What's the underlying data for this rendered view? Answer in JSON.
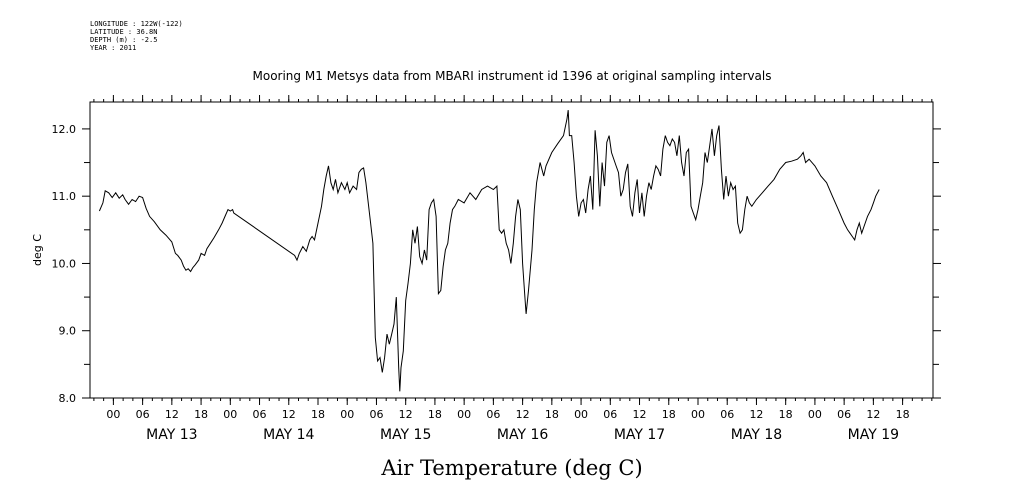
{
  "header": {
    "longitude": "LONGITUDE : 122W(-122)",
    "latitude": "LATITUDE : 36.8N",
    "depth": "DEPTH (m) : -2.5",
    "year": "YEAR : 2011"
  },
  "chart_data": {
    "type": "line",
    "title": "Mooring M1 Metsys data from MBARI instrument id 1396 at original sampling intervals",
    "xlabel": "Air Temperature (deg C)",
    "ylabel": "deg C",
    "ylim": [
      8.0,
      12.4
    ],
    "xlim": [
      -0.2,
      7.01
    ],
    "x_units": "days since May 13 00:00",
    "grid": false,
    "y_ticks": [
      "8.0",
      "9.0",
      "10.0",
      "11.0",
      "12.0"
    ],
    "hour_tick_labels": [
      "00",
      "06",
      "12",
      "18"
    ],
    "day_labels": [
      "MAY 13",
      "MAY 14",
      "MAY 15",
      "MAY 16",
      "MAY 17",
      "MAY 18",
      "MAY 19"
    ],
    "series": [
      {
        "points": [
          [
            -0.12,
            10.78
          ],
          [
            -0.09,
            10.9
          ],
          [
            -0.07,
            11.08
          ],
          [
            -0.04,
            11.05
          ],
          [
            -0.01,
            10.98
          ],
          [
            0.02,
            11.05
          ],
          [
            0.05,
            10.97
          ],
          [
            0.08,
            11.02
          ],
          [
            0.1,
            10.95
          ],
          [
            0.13,
            10.88
          ],
          [
            0.16,
            10.95
          ],
          [
            0.19,
            10.92
          ],
          [
            0.22,
            11.0
          ],
          [
            0.25,
            10.98
          ],
          [
            0.28,
            10.82
          ],
          [
            0.31,
            10.7
          ],
          [
            0.35,
            10.62
          ],
          [
            0.4,
            10.5
          ],
          [
            0.45,
            10.42
          ],
          [
            0.5,
            10.32
          ],
          [
            0.53,
            10.15
          ],
          [
            0.55,
            10.12
          ],
          [
            0.58,
            10.05
          ],
          [
            0.6,
            9.96
          ],
          [
            0.62,
            9.9
          ],
          [
            0.64,
            9.92
          ],
          [
            0.66,
            9.88
          ],
          [
            0.68,
            9.94
          ],
          [
            0.7,
            9.98
          ],
          [
            0.73,
            10.05
          ],
          [
            0.75,
            10.15
          ],
          [
            0.78,
            10.12
          ],
          [
            0.8,
            10.22
          ],
          [
            0.83,
            10.3
          ],
          [
            0.86,
            10.38
          ],
          [
            0.9,
            10.5
          ],
          [
            0.93,
            10.6
          ],
          [
            0.96,
            10.72
          ],
          [
            0.98,
            10.8
          ],
          [
            1.0,
            10.78
          ],
          [
            1.02,
            10.8
          ],
          [
            1.03,
            10.75
          ],
          [
            1.55,
            10.12
          ],
          [
            1.57,
            10.05
          ],
          [
            1.59,
            10.15
          ],
          [
            1.62,
            10.25
          ],
          [
            1.65,
            10.18
          ],
          [
            1.68,
            10.35
          ],
          [
            1.7,
            10.4
          ],
          [
            1.72,
            10.35
          ],
          [
            1.75,
            10.6
          ],
          [
            1.78,
            10.85
          ],
          [
            1.8,
            11.1
          ],
          [
            1.82,
            11.3
          ],
          [
            1.84,
            11.45
          ],
          [
            1.86,
            11.2
          ],
          [
            1.88,
            11.1
          ],
          [
            1.9,
            11.25
          ],
          [
            1.92,
            11.05
          ],
          [
            1.95,
            11.2
          ],
          [
            1.98,
            11.1
          ],
          [
            2.0,
            11.2
          ],
          [
            2.02,
            11.05
          ],
          [
            2.05,
            11.15
          ],
          [
            2.08,
            11.1
          ],
          [
            2.1,
            11.35
          ],
          [
            2.12,
            11.4
          ],
          [
            2.14,
            11.42
          ],
          [
            2.16,
            11.2
          ],
          [
            2.2,
            10.6
          ],
          [
            2.22,
            10.3
          ],
          [
            2.24,
            8.9
          ],
          [
            2.26,
            8.55
          ],
          [
            2.28,
            8.6
          ],
          [
            2.3,
            8.38
          ],
          [
            2.32,
            8.6
          ],
          [
            2.34,
            8.95
          ],
          [
            2.36,
            8.8
          ],
          [
            2.38,
            8.95
          ],
          [
            2.4,
            9.1
          ],
          [
            2.42,
            9.5
          ],
          [
            2.44,
            8.45
          ],
          [
            2.45,
            8.1
          ],
          [
            2.46,
            8.45
          ],
          [
            2.48,
            8.7
          ],
          [
            2.5,
            9.45
          ],
          [
            2.52,
            9.7
          ],
          [
            2.54,
            10.0
          ],
          [
            2.56,
            10.5
          ],
          [
            2.58,
            10.3
          ],
          [
            2.6,
            10.55
          ],
          [
            2.62,
            10.1
          ],
          [
            2.64,
            10.0
          ],
          [
            2.66,
            10.2
          ],
          [
            2.68,
            10.05
          ],
          [
            2.7,
            10.8
          ],
          [
            2.72,
            10.9
          ],
          [
            2.74,
            10.95
          ],
          [
            2.76,
            10.7
          ],
          [
            2.78,
            9.55
          ],
          [
            2.8,
            9.6
          ],
          [
            2.82,
            9.95
          ],
          [
            2.84,
            10.2
          ],
          [
            2.86,
            10.3
          ],
          [
            2.88,
            10.6
          ],
          [
            2.9,
            10.8
          ],
          [
            2.92,
            10.85
          ],
          [
            2.95,
            10.95
          ],
          [
            3.0,
            10.9
          ],
          [
            3.05,
            11.05
          ],
          [
            3.1,
            10.95
          ],
          [
            3.15,
            11.1
          ],
          [
            3.2,
            11.15
          ],
          [
            3.25,
            11.1
          ],
          [
            3.28,
            11.15
          ],
          [
            3.3,
            10.5
          ],
          [
            3.32,
            10.45
          ],
          [
            3.34,
            10.5
          ],
          [
            3.36,
            10.3
          ],
          [
            3.38,
            10.2
          ],
          [
            3.4,
            10.0
          ],
          [
            3.42,
            10.3
          ],
          [
            3.44,
            10.7
          ],
          [
            3.46,
            10.95
          ],
          [
            3.48,
            10.8
          ],
          [
            3.5,
            10.0
          ],
          [
            3.52,
            9.5
          ],
          [
            3.53,
            9.25
          ],
          [
            3.55,
            9.6
          ],
          [
            3.58,
            10.2
          ],
          [
            3.6,
            10.8
          ],
          [
            3.62,
            11.2
          ],
          [
            3.65,
            11.5
          ],
          [
            3.68,
            11.3
          ],
          [
            3.7,
            11.45
          ],
          [
            3.75,
            11.65
          ],
          [
            3.8,
            11.78
          ],
          [
            3.85,
            11.9
          ],
          [
            3.88,
            12.15
          ],
          [
            3.89,
            12.28
          ],
          [
            3.9,
            11.9
          ],
          [
            3.92,
            11.9
          ],
          [
            3.94,
            11.5
          ],
          [
            3.96,
            11.0
          ],
          [
            3.98,
            10.7
          ],
          [
            4.0,
            10.9
          ],
          [
            4.02,
            10.95
          ],
          [
            4.04,
            10.75
          ],
          [
            4.06,
            11.1
          ],
          [
            4.08,
            11.3
          ],
          [
            4.1,
            10.8
          ],
          [
            4.12,
            11.98
          ],
          [
            4.14,
            11.6
          ],
          [
            4.16,
            10.85
          ],
          [
            4.18,
            11.5
          ],
          [
            4.2,
            11.15
          ],
          [
            4.22,
            11.8
          ],
          [
            4.24,
            11.9
          ],
          [
            4.26,
            11.65
          ],
          [
            4.3,
            11.45
          ],
          [
            4.32,
            11.35
          ],
          [
            4.34,
            11.0
          ],
          [
            4.36,
            11.1
          ],
          [
            4.38,
            11.35
          ],
          [
            4.4,
            11.48
          ],
          [
            4.42,
            10.85
          ],
          [
            4.44,
            10.7
          ],
          [
            4.46,
            11.05
          ],
          [
            4.48,
            11.25
          ],
          [
            4.5,
            10.75
          ],
          [
            4.52,
            11.05
          ],
          [
            4.54,
            10.7
          ],
          [
            4.56,
            11.0
          ],
          [
            4.58,
            11.2
          ],
          [
            4.6,
            11.1
          ],
          [
            4.62,
            11.3
          ],
          [
            4.64,
            11.45
          ],
          [
            4.66,
            11.4
          ],
          [
            4.68,
            11.3
          ],
          [
            4.7,
            11.7
          ],
          [
            4.72,
            11.9
          ],
          [
            4.74,
            11.8
          ],
          [
            4.76,
            11.75
          ],
          [
            4.78,
            11.85
          ],
          [
            4.8,
            11.8
          ],
          [
            4.82,
            11.6
          ],
          [
            4.84,
            11.9
          ],
          [
            4.86,
            11.5
          ],
          [
            4.88,
            11.3
          ],
          [
            4.9,
            11.65
          ],
          [
            4.92,
            11.7
          ],
          [
            4.94,
            10.85
          ],
          [
            4.96,
            10.75
          ],
          [
            4.98,
            10.65
          ],
          [
            5.0,
            10.8
          ],
          [
            5.02,
            11.0
          ],
          [
            5.04,
            11.2
          ],
          [
            5.06,
            11.65
          ],
          [
            5.08,
            11.5
          ],
          [
            5.1,
            11.75
          ],
          [
            5.12,
            12.0
          ],
          [
            5.14,
            11.6
          ],
          [
            5.16,
            11.9
          ],
          [
            5.18,
            12.05
          ],
          [
            5.2,
            11.4
          ],
          [
            5.22,
            10.95
          ],
          [
            5.24,
            11.3
          ],
          [
            5.26,
            11.0
          ],
          [
            5.28,
            11.2
          ],
          [
            5.3,
            11.1
          ],
          [
            5.32,
            11.15
          ],
          [
            5.34,
            10.6
          ],
          [
            5.36,
            10.45
          ],
          [
            5.38,
            10.5
          ],
          [
            5.4,
            10.8
          ],
          [
            5.42,
            11.0
          ],
          [
            5.44,
            10.9
          ],
          [
            5.46,
            10.85
          ],
          [
            5.5,
            10.95
          ],
          [
            5.55,
            11.05
          ],
          [
            5.6,
            11.15
          ],
          [
            5.65,
            11.25
          ],
          [
            5.7,
            11.4
          ],
          [
            5.75,
            11.5
          ],
          [
            5.8,
            11.52
          ],
          [
            5.85,
            11.55
          ],
          [
            5.88,
            11.6
          ],
          [
            5.9,
            11.65
          ],
          [
            5.92,
            11.5
          ],
          [
            5.95,
            11.55
          ],
          [
            6.0,
            11.45
          ],
          [
            6.05,
            11.3
          ],
          [
            6.1,
            11.2
          ],
          [
            6.15,
            11.0
          ],
          [
            6.2,
            10.8
          ],
          [
            6.25,
            10.6
          ],
          [
            6.28,
            10.5
          ],
          [
            6.3,
            10.45
          ],
          [
            6.32,
            10.4
          ],
          [
            6.34,
            10.35
          ],
          [
            6.36,
            10.5
          ],
          [
            6.38,
            10.6
          ],
          [
            6.4,
            10.45
          ],
          [
            6.42,
            10.55
          ],
          [
            6.45,
            10.7
          ],
          [
            6.48,
            10.8
          ],
          [
            6.5,
            10.9
          ],
          [
            6.52,
            11.0
          ],
          [
            6.55,
            11.1
          ]
        ]
      }
    ]
  }
}
